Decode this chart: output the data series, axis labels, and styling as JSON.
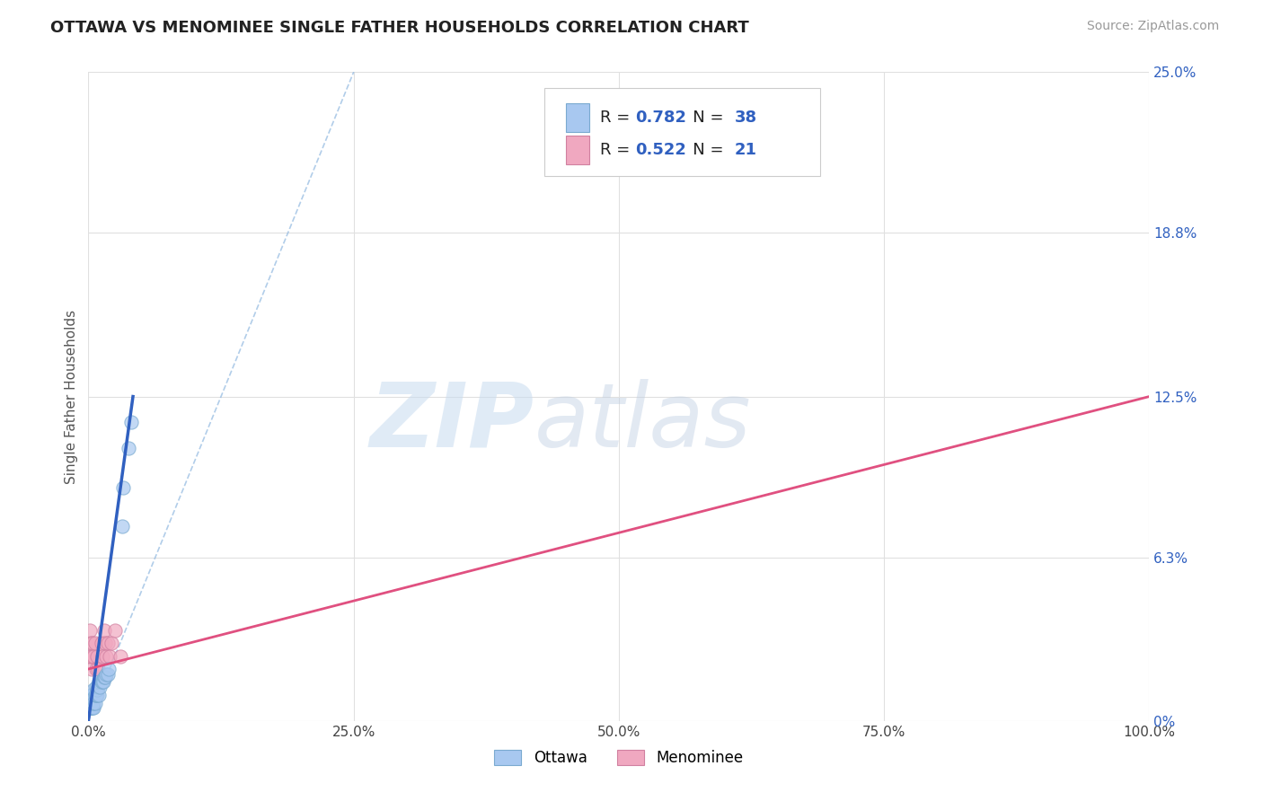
{
  "title": "OTTAWA VS MENOMINEE SINGLE FATHER HOUSEHOLDS CORRELATION CHART",
  "source": "Source: ZipAtlas.com",
  "ylabel": "Single Father Households",
  "xlim": [
    0.0,
    1.0
  ],
  "ylim": [
    0.0,
    0.25
  ],
  "ytick_values": [
    0.0,
    0.063,
    0.125,
    0.188,
    0.25
  ],
  "ytick_labels": [
    "0%",
    "6.3%",
    "12.5%",
    "18.8%",
    "25.0%"
  ],
  "xtick_values": [
    0.0,
    0.25,
    0.5,
    0.75,
    1.0
  ],
  "xtick_labels": [
    "0.0%",
    "25.0%",
    "50.0%",
    "75.0%",
    "100.0%"
  ],
  "ottawa_color": "#a8c8f0",
  "ottawa_edge_color": "#7aaad0",
  "menominee_color": "#f0a8c0",
  "menominee_edge_color": "#d080a0",
  "ottawa_line_color": "#3060c0",
  "menominee_line_color": "#e05080",
  "dashed_line_color": "#90b8e0",
  "r_ottawa": 0.782,
  "n_ottawa": 38,
  "r_menominee": 0.522,
  "n_menominee": 21,
  "legend_text_color": "#222222",
  "legend_num_color": "#3060c0",
  "background_color": "#ffffff",
  "grid_color": "#e0e0e0",
  "ottawa_x": [
    0.001,
    0.001,
    0.001,
    0.002,
    0.002,
    0.002,
    0.003,
    0.003,
    0.003,
    0.003,
    0.004,
    0.004,
    0.004,
    0.005,
    0.005,
    0.005,
    0.006,
    0.006,
    0.007,
    0.007,
    0.008,
    0.008,
    0.009,
    0.01,
    0.01,
    0.011,
    0.012,
    0.013,
    0.014,
    0.015,
    0.016,
    0.017,
    0.018,
    0.019,
    0.032,
    0.033,
    0.038,
    0.04
  ],
  "ottawa_y": [
    0.005,
    0.005,
    0.008,
    0.005,
    0.007,
    0.01,
    0.005,
    0.007,
    0.008,
    0.01,
    0.005,
    0.007,
    0.01,
    0.005,
    0.007,
    0.012,
    0.007,
    0.01,
    0.01,
    0.013,
    0.01,
    0.012,
    0.013,
    0.01,
    0.015,
    0.013,
    0.015,
    0.015,
    0.015,
    0.017,
    0.017,
    0.018,
    0.018,
    0.02,
    0.075,
    0.09,
    0.105,
    0.115
  ],
  "menominee_x": [
    0.001,
    0.001,
    0.002,
    0.003,
    0.003,
    0.004,
    0.005,
    0.006,
    0.007,
    0.008,
    0.009,
    0.012,
    0.013,
    0.015,
    0.016,
    0.017,
    0.018,
    0.02,
    0.022,
    0.025,
    0.03
  ],
  "menominee_y": [
    0.025,
    0.035,
    0.03,
    0.02,
    0.025,
    0.03,
    0.025,
    0.03,
    0.02,
    0.025,
    0.02,
    0.03,
    0.025,
    0.035,
    0.03,
    0.025,
    0.03,
    0.025,
    0.03,
    0.035,
    0.025
  ],
  "ottawa_line_x0": 0.0,
  "ottawa_line_y0": 0.0,
  "ottawa_line_x1": 0.042,
  "ottawa_line_y1": 0.125,
  "menominee_line_x0": 0.0,
  "menominee_line_y0": 0.02,
  "menominee_line_x1": 1.0,
  "menominee_line_y1": 0.125,
  "watermark_zip": "ZIP",
  "watermark_atlas": "atlas"
}
